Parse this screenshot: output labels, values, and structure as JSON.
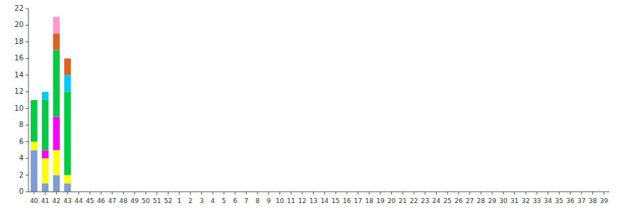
{
  "chart_data": {
    "type": "bar",
    "stacked": true,
    "grid": false,
    "categories": [
      "40",
      "41",
      "42",
      "43",
      "44",
      "45",
      "46",
      "47",
      "48",
      "49",
      "50",
      "51",
      "52",
      "1",
      "2",
      "3",
      "4",
      "5",
      "6",
      "7",
      "8",
      "9",
      "10",
      "11",
      "12",
      "13",
      "14",
      "15",
      "16",
      "17",
      "18",
      "19",
      "20",
      "21",
      "22",
      "23",
      "24",
      "25",
      "26",
      "27",
      "28",
      "29",
      "30",
      "31",
      "32",
      "33",
      "34",
      "35",
      "36",
      "37",
      "38",
      "39"
    ],
    "series": [
      {
        "color": "#7b9fd4",
        "values": [
          5,
          1,
          2,
          1,
          0,
          0,
          0,
          0,
          0,
          0,
          0,
          0,
          0,
          0,
          0,
          0,
          0,
          0,
          0,
          0,
          0,
          0,
          0,
          0,
          0,
          0,
          0,
          0,
          0,
          0,
          0,
          0,
          0,
          0,
          0,
          0,
          0,
          0,
          0,
          0,
          0,
          0,
          0,
          0,
          0,
          0,
          0,
          0,
          0,
          0,
          0,
          0
        ]
      },
      {
        "color": "#ffff00",
        "values": [
          1,
          3,
          3,
          1,
          0,
          0,
          0,
          0,
          0,
          0,
          0,
          0,
          0,
          0,
          0,
          0,
          0,
          0,
          0,
          0,
          0,
          0,
          0,
          0,
          0,
          0,
          0,
          0,
          0,
          0,
          0,
          0,
          0,
          0,
          0,
          0,
          0,
          0,
          0,
          0,
          0,
          0,
          0,
          0,
          0,
          0,
          0,
          0,
          0,
          0,
          0,
          0
        ]
      },
      {
        "color": "#ff00ff",
        "values": [
          0,
          1,
          4,
          0,
          0,
          0,
          0,
          0,
          0,
          0,
          0,
          0,
          0,
          0,
          0,
          0,
          0,
          0,
          0,
          0,
          0,
          0,
          0,
          0,
          0,
          0,
          0,
          0,
          0,
          0,
          0,
          0,
          0,
          0,
          0,
          0,
          0,
          0,
          0,
          0,
          0,
          0,
          0,
          0,
          0,
          0,
          0,
          0,
          0,
          0,
          0,
          0
        ]
      },
      {
        "color": "#00cc44",
        "values": [
          5,
          6,
          8,
          10,
          0,
          0,
          0,
          0,
          0,
          0,
          0,
          0,
          0,
          0,
          0,
          0,
          0,
          0,
          0,
          0,
          0,
          0,
          0,
          0,
          0,
          0,
          0,
          0,
          0,
          0,
          0,
          0,
          0,
          0,
          0,
          0,
          0,
          0,
          0,
          0,
          0,
          0,
          0,
          0,
          0,
          0,
          0,
          0,
          0,
          0,
          0,
          0
        ]
      },
      {
        "color": "#00ccff",
        "values": [
          0,
          1,
          0,
          2,
          0,
          0,
          0,
          0,
          0,
          0,
          0,
          0,
          0,
          0,
          0,
          0,
          0,
          0,
          0,
          0,
          0,
          0,
          0,
          0,
          0,
          0,
          0,
          0,
          0,
          0,
          0,
          0,
          0,
          0,
          0,
          0,
          0,
          0,
          0,
          0,
          0,
          0,
          0,
          0,
          0,
          0,
          0,
          0,
          0,
          0,
          0,
          0
        ]
      },
      {
        "color": "#e06020",
        "values": [
          0,
          0,
          2,
          2,
          0,
          0,
          0,
          0,
          0,
          0,
          0,
          0,
          0,
          0,
          0,
          0,
          0,
          0,
          0,
          0,
          0,
          0,
          0,
          0,
          0,
          0,
          0,
          0,
          0,
          0,
          0,
          0,
          0,
          0,
          0,
          0,
          0,
          0,
          0,
          0,
          0,
          0,
          0,
          0,
          0,
          0,
          0,
          0,
          0,
          0,
          0,
          0
        ]
      },
      {
        "color": "#ff99cc",
        "values": [
          0,
          0,
          2,
          0,
          0,
          0,
          0,
          0,
          0,
          0,
          0,
          0,
          0,
          0,
          0,
          0,
          0,
          0,
          0,
          0,
          0,
          0,
          0,
          0,
          0,
          0,
          0,
          0,
          0,
          0,
          0,
          0,
          0,
          0,
          0,
          0,
          0,
          0,
          0,
          0,
          0,
          0,
          0,
          0,
          0,
          0,
          0,
          0,
          0,
          0,
          0,
          0
        ]
      }
    ],
    "ylim": [
      0,
      22
    ],
    "yticks": [
      0,
      2,
      4,
      6,
      8,
      10,
      12,
      14,
      16,
      18,
      20,
      22
    ]
  }
}
